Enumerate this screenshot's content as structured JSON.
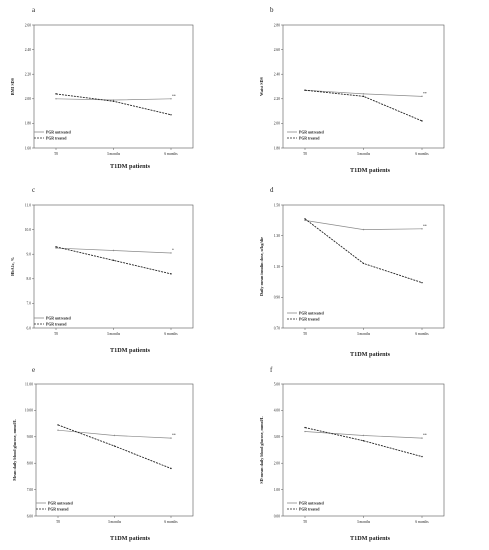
{
  "chart_data": [
    {
      "type": "line",
      "panel_letter": "a",
      "categories": [
        "T0",
        "3 months",
        "6 months"
      ],
      "ylabel": "BMI SDS",
      "xlabel": "T1DM patients",
      "ylim": [
        1.6,
        2.6
      ],
      "yticks": [
        "1.60",
        "1.80",
        "2.00",
        "2.20",
        "2.40",
        "2.60"
      ],
      "series": [
        {
          "name": "PGR untreated",
          "values": [
            2.0,
            1.99,
            2.0
          ],
          "style": "solid"
        },
        {
          "name": "PGR treated",
          "values": [
            2.04,
            1.98,
            1.87
          ],
          "style": "dashed"
        }
      ],
      "significance": "**"
    },
    {
      "type": "line",
      "panel_letter": "b",
      "categories": [
        "T0",
        "3 months",
        "6 months"
      ],
      "ylabel": "Waist SDS",
      "xlabel": "T1DM patients",
      "ylim": [
        1.8,
        2.8
      ],
      "yticks": [
        "1.80",
        "2.00",
        "2.20",
        "2.40",
        "2.60",
        "2.80"
      ],
      "series": [
        {
          "name": "PGR untreated",
          "values": [
            2.27,
            2.24,
            2.22
          ],
          "style": "solid"
        },
        {
          "name": "PGR treated",
          "values": [
            2.27,
            2.22,
            2.02
          ],
          "style": "dashed"
        }
      ],
      "significance": "**"
    },
    {
      "type": "line",
      "panel_letter": "c",
      "categories": [
        "T0",
        "3 months",
        "6 months"
      ],
      "ylabel": "HbA1c, %",
      "xlabel": "T1DM patients",
      "ylim": [
        6.0,
        11.0
      ],
      "yticks": [
        "6.0",
        "7.0",
        "8.0",
        "9.0",
        "10.0",
        "11.0"
      ],
      "series": [
        {
          "name": "PGR untreated",
          "values": [
            9.25,
            9.15,
            9.05
          ],
          "style": "solid"
        },
        {
          "name": "PGR treated",
          "values": [
            9.3,
            8.75,
            8.2
          ],
          "style": "dashed"
        }
      ],
      "significance": "*"
    },
    {
      "type": "line",
      "panel_letter": "d",
      "categories": [
        "T0",
        "3 months",
        "6 months"
      ],
      "ylabel": "Daily mean insulin dose, u/kg/die",
      "xlabel": "T1DM patients",
      "ylim": [
        0.7,
        1.5
      ],
      "yticks": [
        "0.70",
        "0.90",
        "1.10",
        "1.30",
        "1.50"
      ],
      "series": [
        {
          "name": "PGR untreated",
          "values": [
            1.4,
            1.34,
            1.345
          ],
          "style": "solid"
        },
        {
          "name": "PGR treated",
          "values": [
            1.41,
            1.12,
            0.995
          ],
          "style": "dashed"
        }
      ],
      "significance": "**"
    },
    {
      "type": "line",
      "panel_letter": "e",
      "categories": [
        "T0",
        "3 months",
        "6 months"
      ],
      "ylabel": "Mean daily blood glucose, mmol/L",
      "xlabel": "T1DM patients",
      "ylim": [
        6.0,
        11.0
      ],
      "yticks": [
        "6.00",
        "7.00",
        "8.00",
        "9.00",
        "10.00",
        "11.00"
      ],
      "series": [
        {
          "name": "PGR untreated",
          "values": [
            9.25,
            9.05,
            8.95
          ],
          "style": "solid"
        },
        {
          "name": "PGR treated",
          "values": [
            9.45,
            8.65,
            7.8
          ],
          "style": "dashed"
        }
      ],
      "significance": "**"
    },
    {
      "type": "line",
      "panel_letter": "f",
      "categories": [
        "T0",
        "3 months",
        "6 months"
      ],
      "ylabel": "SD mean daily blood glucose, mmol/L",
      "xlabel": "T1DM patients",
      "ylim": [
        0.0,
        5.0
      ],
      "yticks": [
        "0.00",
        "1.00",
        "2.00",
        "3.00",
        "4.00",
        "5.00"
      ],
      "series": [
        {
          "name": "PGR untreated",
          "values": [
            3.2,
            3.05,
            2.95
          ],
          "style": "solid"
        },
        {
          "name": "PGR treated",
          "values": [
            3.35,
            2.85,
            2.25
          ],
          "style": "dashed"
        }
      ],
      "significance": "**"
    }
  ]
}
